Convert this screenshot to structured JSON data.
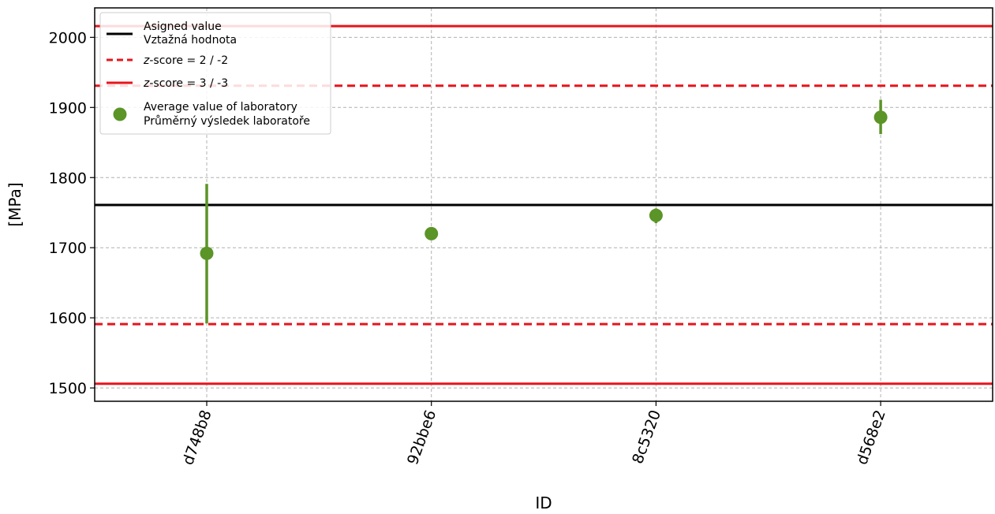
{
  "chart_data": {
    "type": "scatter",
    "xlabel": "ID",
    "ylabel": "[MPa]",
    "categories": [
      "d748b8",
      "92bbe6",
      "8c5320",
      "d568e2"
    ],
    "ylim": [
      1481,
      2042
    ],
    "yticks": [
      1500,
      1600,
      1700,
      1800,
      1900,
      2000
    ],
    "ytick_labels": [
      "1500",
      "1600",
      "1700",
      "1800",
      "1900",
      "2000"
    ],
    "grid": true,
    "legend_position": "top-left",
    "assigned_value": 1761,
    "z2_limits": [
      1591,
      1931
    ],
    "z3_limits": [
      1506,
      2016
    ],
    "series": [
      {
        "name": "Average value of laboratory",
        "name2": "Průměrný výsledek laboratoře",
        "values": [
          1692,
          1720,
          1746,
          1886
        ],
        "error_low": [
          1592,
          1713,
          1735,
          1862
        ],
        "error_high": [
          1791,
          1728,
          1756,
          1911
        ]
      }
    ],
    "legend": [
      {
        "kind": "assigned",
        "line1": "Asigned value",
        "line2": "Vztažná hodnota"
      },
      {
        "kind": "z2",
        "prefix": "z",
        "suffix": "-score = 2 / -2"
      },
      {
        "kind": "z3",
        "prefix": "z",
        "suffix": "-score = 3 / -3"
      },
      {
        "kind": "average",
        "line1": "Average value of laboratory",
        "line2": "Průměrný výsledek laboratoře"
      }
    ],
    "colors": {
      "assigned": "#000000",
      "limits": "#e8141c",
      "points": "#5b9427",
      "grid": "#b0b0b0"
    }
  }
}
